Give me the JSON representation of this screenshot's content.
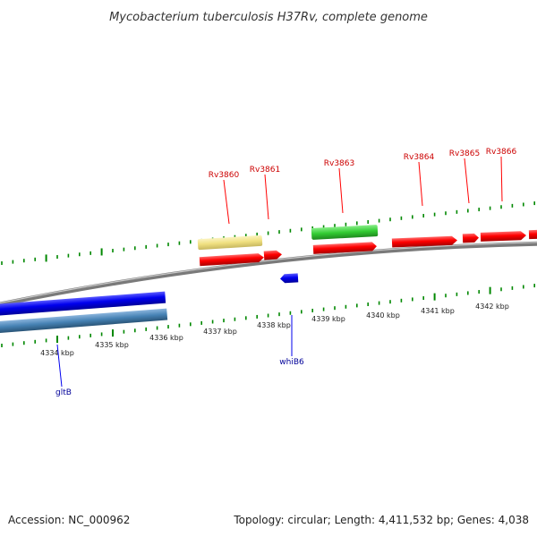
{
  "title": "Mycobacterium tuberculosis H37Rv, complete genome",
  "footer": {
    "accession": "Accession: NC_000962",
    "summary": "Topology: circular; Length: 4,411,532 bp; Genes: 4,038"
  },
  "colors": {
    "forward_gene": "#ff0000",
    "reverse_gene": "#0000ee",
    "forward_label": "#cc0000",
    "reverse_label": "#000099",
    "backbone": "#808080",
    "tick": "#008800",
    "yellow_feature": "#f0e080",
    "green_feature": "#33cc33",
    "blue_feature": "#0000dd",
    "steelblue_feature": "#4682b4"
  },
  "kbp_labels": [
    "4334 kbp",
    "4335 kbp",
    "4336 kbp",
    "4337 kbp",
    "4338 kbp",
    "4339 kbp",
    "4340 kbp",
    "4341 kbp",
    "4342 kbp"
  ],
  "forward_gene_labels": [
    "Rv3860",
    "Rv3861",
    "Rv3863",
    "Rv3864",
    "Rv3865",
    "Rv3866"
  ],
  "reverse_gene_labels": [
    "whiB6",
    "gltB"
  ]
}
